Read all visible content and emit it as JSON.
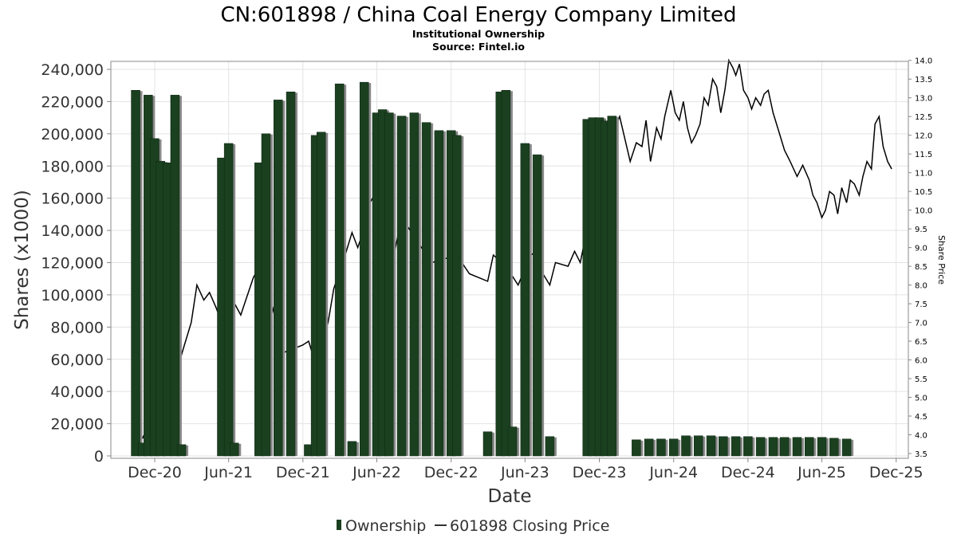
{
  "chart_data": {
    "type": "bar",
    "title": "CN:601898 / China Coal Energy Company Limited",
    "subtitle": "Institutional Ownership",
    "source": "Source: Fintel.io",
    "xlabel": "Date",
    "ylabel": "Shares (x1000)",
    "y2label": "Share Price",
    "ylim": [
      0,
      240000
    ],
    "y2lim": [
      3.5,
      14.25
    ],
    "xlim": [
      "2020-08-15",
      "2025-12-31"
    ],
    "y_ticks": [
      "0",
      "20,000",
      "40,000",
      "60,000",
      "80,000",
      "100,000",
      "120,000",
      "140,000",
      "160,000",
      "180,000",
      "200,000",
      "220,000",
      "240,000"
    ],
    "y2_ticks": [
      "3.5",
      "4.0",
      "4.5",
      "5.0",
      "5.5",
      "6.0",
      "6.5",
      "7.0",
      "7.5",
      "8.0",
      "8.5",
      "9.0",
      "9.5",
      "10.0",
      "10.5",
      "11.0",
      "11.5",
      "12.0",
      "12.5",
      "13.0",
      "13.5",
      "14.0"
    ],
    "x_ticks": [
      {
        "date": "2020-12-01",
        "label": "Dec-20"
      },
      {
        "date": "2021-06-01",
        "label": "Jun-21"
      },
      {
        "date": "2021-12-01",
        "label": "Dec-21"
      },
      {
        "date": "2022-06-01",
        "label": "Jun-22"
      },
      {
        "date": "2022-12-01",
        "label": "Dec-22"
      },
      {
        "date": "2023-06-01",
        "label": "Jun-23"
      },
      {
        "date": "2023-12-01",
        "label": "Dec-23"
      },
      {
        "date": "2024-06-01",
        "label": "Jun-24"
      },
      {
        "date": "2024-12-01",
        "label": "Dec-24"
      },
      {
        "date": "2025-06-01",
        "label": "Jun-25"
      },
      {
        "date": "2025-12-01",
        "label": "Dec-25"
      }
    ],
    "legend": {
      "placement": "bottom",
      "entries": [
        "Ownership",
        "601898 Closing Price"
      ]
    },
    "grid": true,
    "series": [
      {
        "name": "Ownership",
        "type": "bar",
        "color": "#1a4020",
        "points": [
          {
            "x": "2020-10-15",
            "y": 227000
          },
          {
            "x": "2020-11-01",
            "y": 8000
          },
          {
            "x": "2020-11-15",
            "y": 224000
          },
          {
            "x": "2020-12-01",
            "y": 197000
          },
          {
            "x": "2020-12-15",
            "y": 183000
          },
          {
            "x": "2021-01-01",
            "y": 182000
          },
          {
            "x": "2021-01-20",
            "y": 224000
          },
          {
            "x": "2021-02-05",
            "y": 7000
          },
          {
            "x": "2021-05-15",
            "y": 185000
          },
          {
            "x": "2021-06-01",
            "y": 194000
          },
          {
            "x": "2021-06-15",
            "y": 8000
          },
          {
            "x": "2021-08-15",
            "y": 182000
          },
          {
            "x": "2021-09-01",
            "y": 200000
          },
          {
            "x": "2021-10-01",
            "y": 221000
          },
          {
            "x": "2021-11-01",
            "y": 226000
          },
          {
            "x": "2021-12-15",
            "y": 7000
          },
          {
            "x": "2022-01-01",
            "y": 199000
          },
          {
            "x": "2022-01-15",
            "y": 201000
          },
          {
            "x": "2022-03-01",
            "y": 231000
          },
          {
            "x": "2022-04-01",
            "y": 9000
          },
          {
            "x": "2022-05-01",
            "y": 232000
          },
          {
            "x": "2022-06-01",
            "y": 213000
          },
          {
            "x": "2022-06-15",
            "y": 215000
          },
          {
            "x": "2022-07-01",
            "y": 213000
          },
          {
            "x": "2022-08-01",
            "y": 211000
          },
          {
            "x": "2022-09-01",
            "y": 213000
          },
          {
            "x": "2022-10-01",
            "y": 207000
          },
          {
            "x": "2022-11-01",
            "y": 202000
          },
          {
            "x": "2022-12-01",
            "y": 202000
          },
          {
            "x": "2022-12-15",
            "y": 199000
          },
          {
            "x": "2023-03-01",
            "y": 15000
          },
          {
            "x": "2023-04-01",
            "y": 226000
          },
          {
            "x": "2023-04-15",
            "y": 227000
          },
          {
            "x": "2023-05-01",
            "y": 18000
          },
          {
            "x": "2023-06-01",
            "y": 194000
          },
          {
            "x": "2023-07-01",
            "y": 187000
          },
          {
            "x": "2023-08-01",
            "y": 12000
          },
          {
            "x": "2023-11-01",
            "y": 209000
          },
          {
            "x": "2023-11-15",
            "y": 210000
          },
          {
            "x": "2023-12-01",
            "y": 210000
          },
          {
            "x": "2023-12-15",
            "y": 208000
          },
          {
            "x": "2024-01-01",
            "y": 211000
          },
          {
            "x": "2024-03-01",
            "y": 10000
          },
          {
            "x": "2024-04-01",
            "y": 10500
          },
          {
            "x": "2024-05-01",
            "y": 10500
          },
          {
            "x": "2024-06-01",
            "y": 10500
          },
          {
            "x": "2024-07-01",
            "y": 12500
          },
          {
            "x": "2024-08-01",
            "y": 12500
          },
          {
            "x": "2024-09-01",
            "y": 12500
          },
          {
            "x": "2024-10-01",
            "y": 12000
          },
          {
            "x": "2024-11-01",
            "y": 12000
          },
          {
            "x": "2024-12-01",
            "y": 12000
          },
          {
            "x": "2025-01-01",
            "y": 11500
          },
          {
            "x": "2025-02-01",
            "y": 11500
          },
          {
            "x": "2025-03-01",
            "y": 11500
          },
          {
            "x": "2025-04-01",
            "y": 11500
          },
          {
            "x": "2025-05-01",
            "y": 11500
          },
          {
            "x": "2025-06-01",
            "y": 11500
          },
          {
            "x": "2025-07-01",
            "y": 11000
          },
          {
            "x": "2025-08-01",
            "y": 10500
          }
        ]
      },
      {
        "name": "601898 Closing Price",
        "type": "line",
        "axis": "right",
        "color": "#000000",
        "points": [
          {
            "x": "2020-11-01",
            "y": 3.9
          },
          {
            "x": "2020-11-15",
            "y": 4.25
          },
          {
            "x": "2020-12-01",
            "y": 4.6
          },
          {
            "x": "2020-12-15",
            "y": 4.4
          },
          {
            "x": "2021-01-01",
            "y": 4.1
          },
          {
            "x": "2021-01-15",
            "y": 5.0
          },
          {
            "x": "2021-02-01",
            "y": 6.0
          },
          {
            "x": "2021-03-01",
            "y": 7.0
          },
          {
            "x": "2021-03-15",
            "y": 8.0
          },
          {
            "x": "2021-04-01",
            "y": 7.6
          },
          {
            "x": "2021-04-15",
            "y": 7.8
          },
          {
            "x": "2021-05-01",
            "y": 7.4
          },
          {
            "x": "2021-05-15",
            "y": 7.0
          },
          {
            "x": "2021-06-01",
            "y": 7.8
          },
          {
            "x": "2021-07-01",
            "y": 7.2
          },
          {
            "x": "2021-08-01",
            "y": 8.2
          },
          {
            "x": "2021-09-01",
            "y": 8.8
          },
          {
            "x": "2021-09-15",
            "y": 7.5
          },
          {
            "x": "2021-10-15",
            "y": 6.2
          },
          {
            "x": "2021-12-01",
            "y": 6.4
          },
          {
            "x": "2021-12-15",
            "y": 6.5
          },
          {
            "x": "2022-01-01",
            "y": 5.9
          },
          {
            "x": "2022-02-01",
            "y": 7.0
          },
          {
            "x": "2022-02-15",
            "y": 7.9
          },
          {
            "x": "2022-03-15",
            "y": 8.8
          },
          {
            "x": "2022-04-01",
            "y": 9.4
          },
          {
            "x": "2022-04-15",
            "y": 9.0
          },
          {
            "x": "2022-05-01",
            "y": 9.5
          },
          {
            "x": "2022-05-15",
            "y": 10.2
          },
          {
            "x": "2022-06-01",
            "y": 10.5
          },
          {
            "x": "2022-07-01",
            "y": 9.7
          },
          {
            "x": "2022-07-15",
            "y": 8.9
          },
          {
            "x": "2022-08-01",
            "y": 9.8
          },
          {
            "x": "2022-09-01",
            "y": 9.3
          },
          {
            "x": "2022-10-01",
            "y": 8.8
          },
          {
            "x": "2022-10-15",
            "y": 8.6
          },
          {
            "x": "2022-11-15",
            "y": 8.7
          },
          {
            "x": "2022-12-15",
            "y": 8.8
          },
          {
            "x": "2023-01-15",
            "y": 8.3
          },
          {
            "x": "2023-03-01",
            "y": 8.1
          },
          {
            "x": "2023-03-15",
            "y": 8.8
          },
          {
            "x": "2023-04-15",
            "y": 8.5
          },
          {
            "x": "2023-05-15",
            "y": 8.0
          },
          {
            "x": "2023-06-15",
            "y": 8.8
          },
          {
            "x": "2023-07-01",
            "y": 8.9
          },
          {
            "x": "2023-07-15",
            "y": 8.3
          },
          {
            "x": "2023-08-01",
            "y": 8.0
          },
          {
            "x": "2023-08-15",
            "y": 8.6
          },
          {
            "x": "2023-09-15",
            "y": 8.5
          },
          {
            "x": "2023-10-01",
            "y": 8.9
          },
          {
            "x": "2023-10-15",
            "y": 8.6
          },
          {
            "x": "2023-11-01",
            "y": 9.5
          },
          {
            "x": "2023-11-15",
            "y": 10.5
          },
          {
            "x": "2023-12-15",
            "y": 11.5
          },
          {
            "x": "2024-01-01",
            "y": 12.0
          },
          {
            "x": "2024-01-20",
            "y": 12.5
          },
          {
            "x": "2024-02-15",
            "y": 11.3
          },
          {
            "x": "2024-03-01",
            "y": 11.8
          },
          {
            "x": "2024-03-15",
            "y": 11.7
          },
          {
            "x": "2024-03-25",
            "y": 12.4
          },
          {
            "x": "2024-04-05",
            "y": 11.3
          },
          {
            "x": "2024-04-20",
            "y": 12.2
          },
          {
            "x": "2024-05-01",
            "y": 11.9
          },
          {
            "x": "2024-05-10",
            "y": 12.5
          },
          {
            "x": "2024-05-25",
            "y": 13.2
          },
          {
            "x": "2024-06-05",
            "y": 12.6
          },
          {
            "x": "2024-06-15",
            "y": 12.4
          },
          {
            "x": "2024-06-25",
            "y": 12.9
          },
          {
            "x": "2024-07-05",
            "y": 12.2
          },
          {
            "x": "2024-07-15",
            "y": 11.8
          },
          {
            "x": "2024-07-25",
            "y": 12.0
          },
          {
            "x": "2024-08-05",
            "y": 12.3
          },
          {
            "x": "2024-08-15",
            "y": 13.0
          },
          {
            "x": "2024-08-25",
            "y": 12.8
          },
          {
            "x": "2024-09-05",
            "y": 13.5
          },
          {
            "x": "2024-09-15",
            "y": 13.3
          },
          {
            "x": "2024-09-25",
            "y": 12.6
          },
          {
            "x": "2024-10-05",
            "y": 13.2
          },
          {
            "x": "2024-10-15",
            "y": 14.0
          },
          {
            "x": "2024-10-25",
            "y": 13.8
          },
          {
            "x": "2024-11-01",
            "y": 13.6
          },
          {
            "x": "2024-11-10",
            "y": 13.9
          },
          {
            "x": "2024-11-20",
            "y": 13.2
          },
          {
            "x": "2024-12-01",
            "y": 13.0
          },
          {
            "x": "2024-12-10",
            "y": 12.7
          },
          {
            "x": "2024-12-20",
            "y": 13.0
          },
          {
            "x": "2025-01-01",
            "y": 12.8
          },
          {
            "x": "2025-01-10",
            "y": 13.1
          },
          {
            "x": "2025-01-20",
            "y": 13.2
          },
          {
            "x": "2025-02-01",
            "y": 12.6
          },
          {
            "x": "2025-02-15",
            "y": 12.1
          },
          {
            "x": "2025-03-01",
            "y": 11.6
          },
          {
            "x": "2025-03-15",
            "y": 11.3
          },
          {
            "x": "2025-04-01",
            "y": 10.9
          },
          {
            "x": "2025-04-15",
            "y": 11.2
          },
          {
            "x": "2025-05-01",
            "y": 10.8
          },
          {
            "x": "2025-05-10",
            "y": 10.4
          },
          {
            "x": "2025-05-20",
            "y": 10.2
          },
          {
            "x": "2025-06-01",
            "y": 9.8
          },
          {
            "x": "2025-06-10",
            "y": 10.0
          },
          {
            "x": "2025-06-20",
            "y": 10.5
          },
          {
            "x": "2025-07-01",
            "y": 10.4
          },
          {
            "x": "2025-07-10",
            "y": 9.9
          },
          {
            "x": "2025-07-20",
            "y": 10.6
          },
          {
            "x": "2025-08-01",
            "y": 10.2
          },
          {
            "x": "2025-08-10",
            "y": 10.8
          },
          {
            "x": "2025-08-20",
            "y": 10.7
          },
          {
            "x": "2025-09-01",
            "y": 10.4
          },
          {
            "x": "2025-09-10",
            "y": 10.9
          },
          {
            "x": "2025-09-20",
            "y": 11.3
          },
          {
            "x": "2025-10-01",
            "y": 11.1
          },
          {
            "x": "2025-10-10",
            "y": 12.3
          },
          {
            "x": "2025-10-20",
            "y": 12.5
          },
          {
            "x": "2025-10-30",
            "y": 11.7
          },
          {
            "x": "2025-11-10",
            "y": 11.3
          },
          {
            "x": "2025-11-20",
            "y": 11.1
          }
        ]
      }
    ]
  }
}
